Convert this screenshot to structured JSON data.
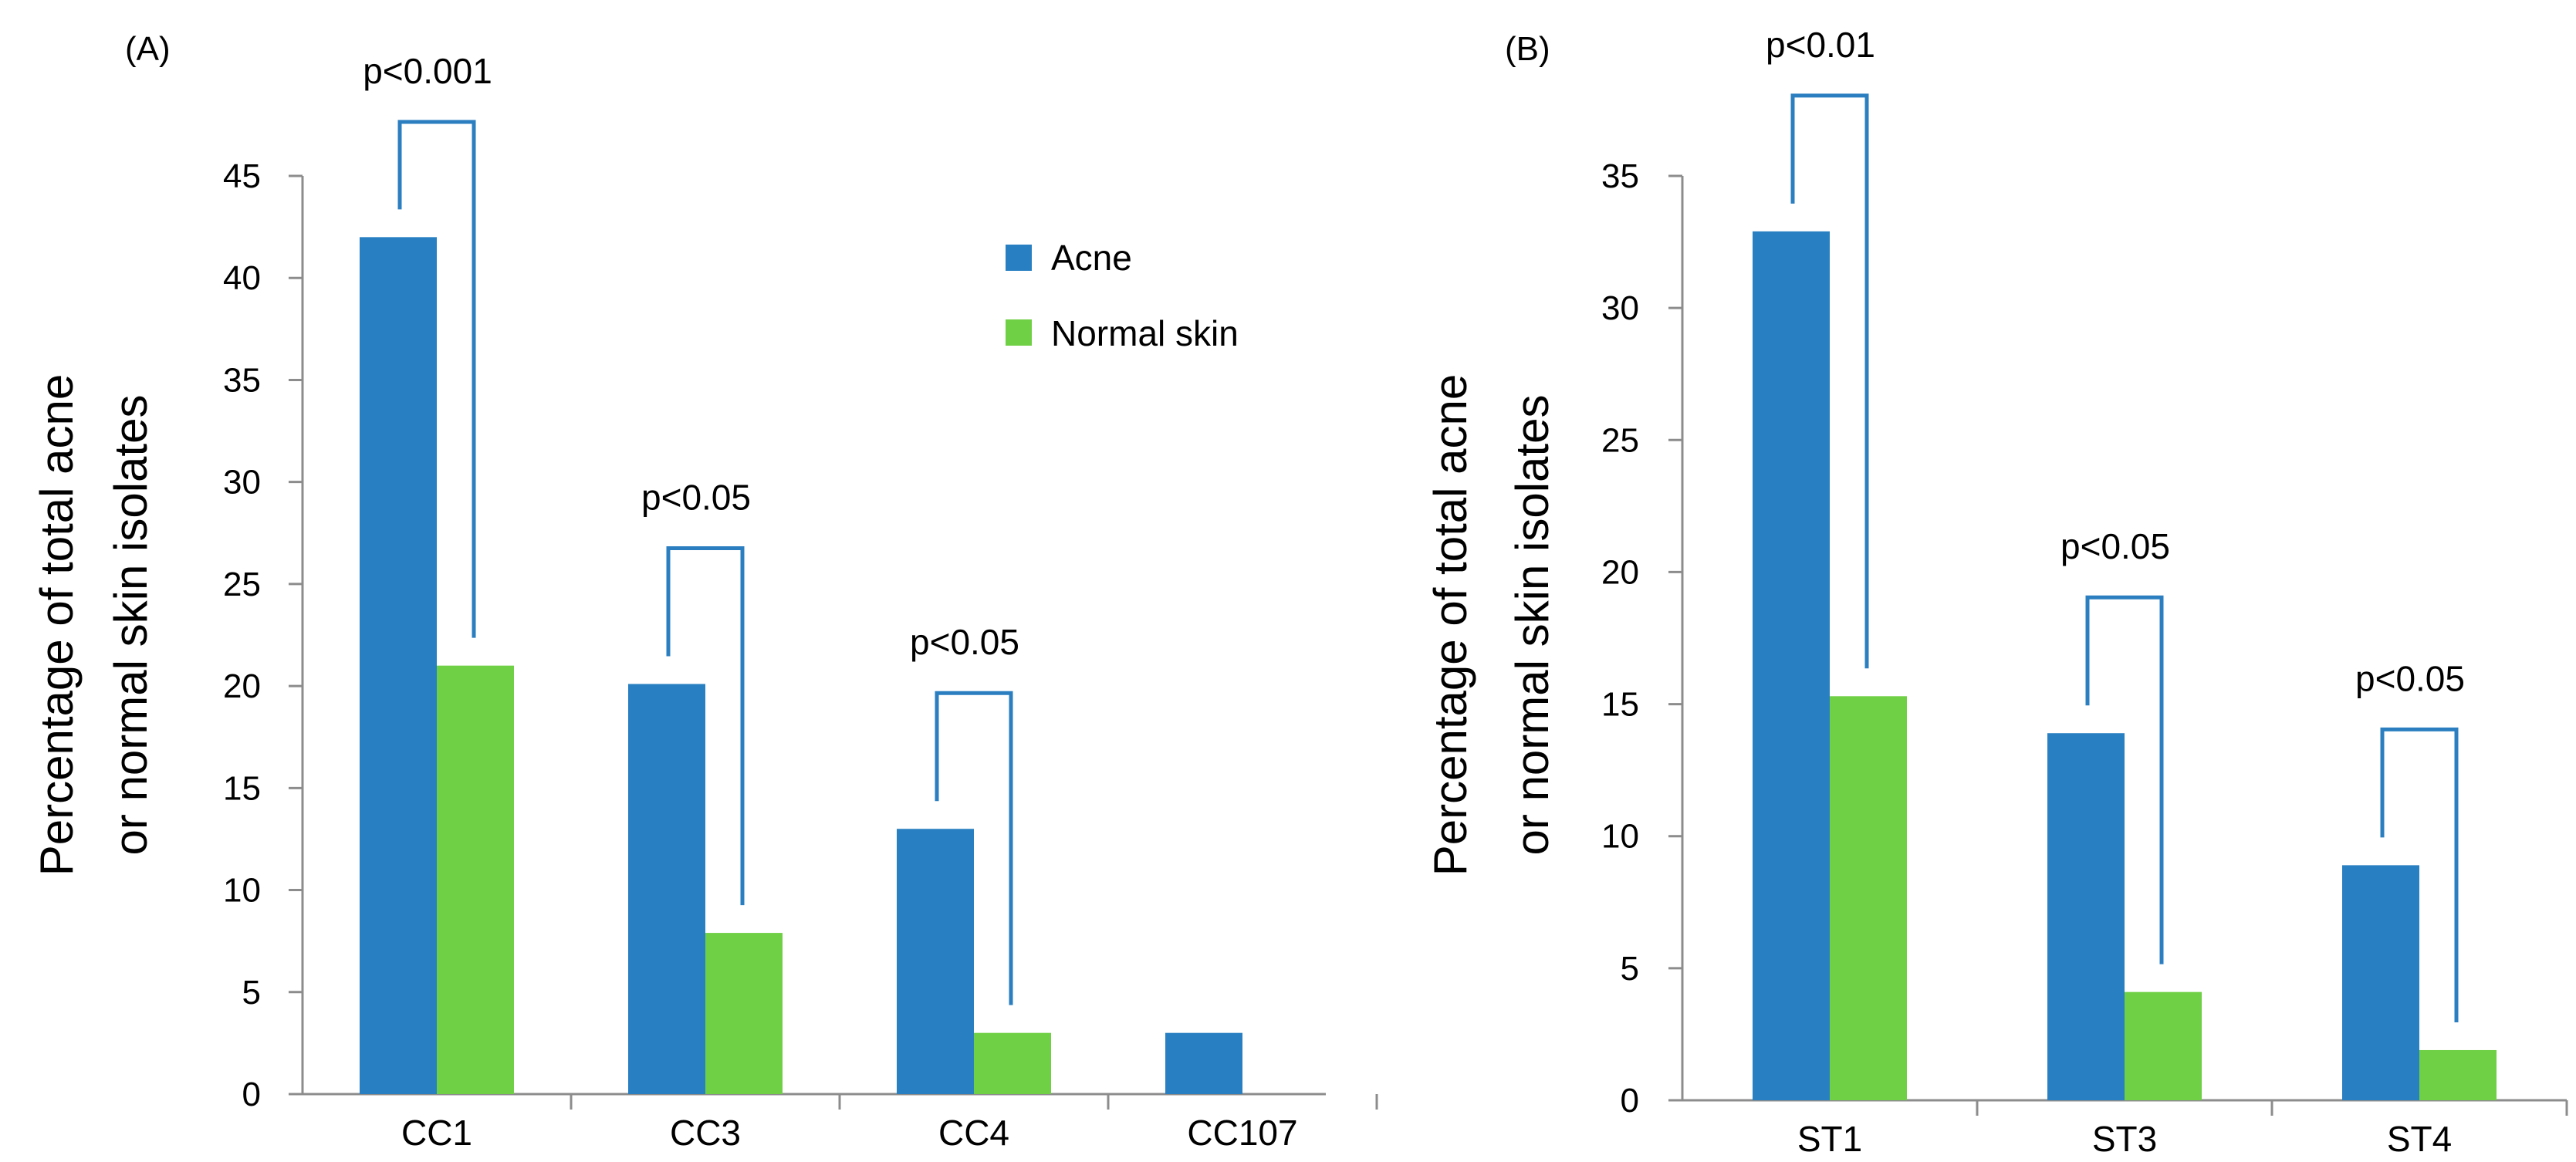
{
  "colors": {
    "acne": "#2880c2",
    "normal": "#6fd045",
    "bracket": "#2b7fc0",
    "axis": "#8c8c8c"
  },
  "legend": {
    "series": [
      "Acne",
      "Normal skin"
    ]
  },
  "chart_data": [
    {
      "type": "bar",
      "panel_label": "(A)",
      "title": "",
      "xlabel": "",
      "ylabel": [
        "Percentage of total acne",
        "or  normal skin isolates"
      ],
      "categories": [
        "CC1",
        "CC3",
        "CC4",
        "CC107"
      ],
      "series": [
        {
          "name": "Acne",
          "values": [
            42,
            20.1,
            13,
            3
          ]
        },
        {
          "name": "Normal skin",
          "values": [
            21,
            7.9,
            3,
            0
          ]
        }
      ],
      "ylim": [
        0,
        45
      ],
      "yticks": [
        0,
        5,
        10,
        15,
        20,
        25,
        30,
        35,
        40,
        45
      ],
      "annotations": [
        {
          "category": "CC1",
          "text": "p<0.001"
        },
        {
          "category": "CC3",
          "text": "p<0.05"
        },
        {
          "category": "CC4",
          "text": "p<0.05"
        }
      ]
    },
    {
      "type": "bar",
      "panel_label": "(B)",
      "title": "",
      "xlabel": "",
      "ylabel": [
        "Percentage of total acne",
        "or  normal skin isolates"
      ],
      "categories": [
        "ST1",
        "ST3",
        "ST4"
      ],
      "series": [
        {
          "name": "Acne",
          "values": [
            32.9,
            13.9,
            8.9
          ]
        },
        {
          "name": "Normal skin",
          "values": [
            15.3,
            4.1,
            1.9
          ]
        }
      ],
      "ylim": [
        0,
        35
      ],
      "yticks": [
        0,
        5,
        10,
        15,
        20,
        25,
        30,
        35
      ],
      "annotations": [
        {
          "category": "ST1",
          "text": "p<0.01"
        },
        {
          "category": "ST3",
          "text": "p<0.05"
        },
        {
          "category": "ST4",
          "text": "p<0.05"
        }
      ]
    }
  ]
}
